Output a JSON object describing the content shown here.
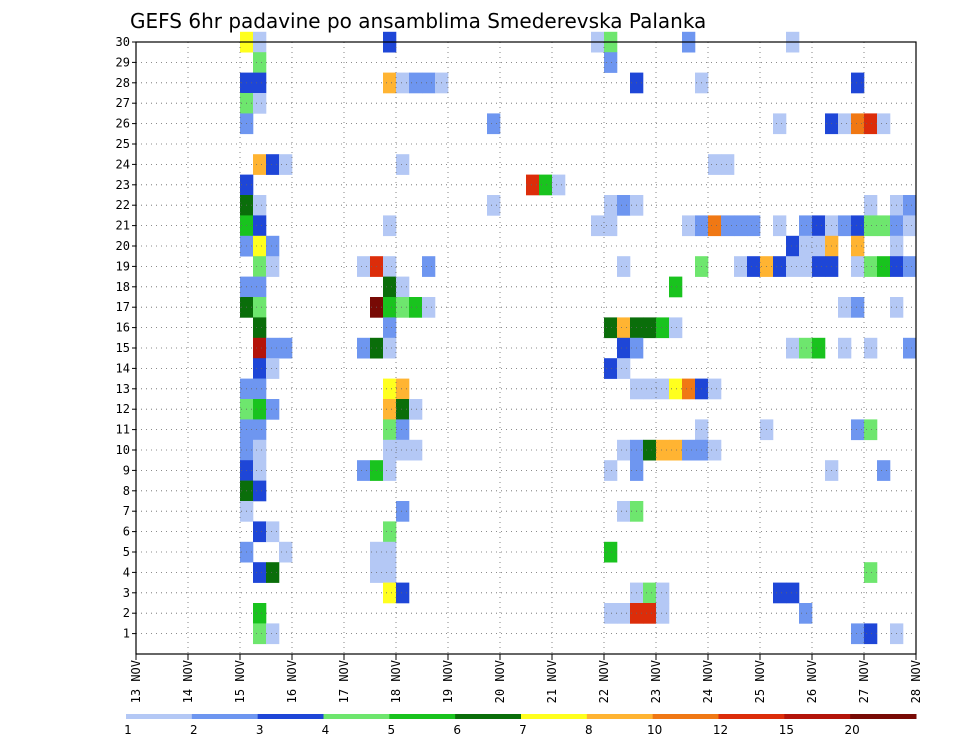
{
  "chart_data": {
    "type": "heatmap",
    "title": "GEFS 6hr padavine po ansamblima Smederevska Palanka",
    "xlabel": "",
    "ylabel": "",
    "x_tick_labels": [
      "13 NOV",
      "14 NOV",
      "15 NOV",
      "16 NOV",
      "17 NOV",
      "18 NOV",
      "19 NOV",
      "20 NOV",
      "21 NOV",
      "22 NOV",
      "23 NOV",
      "24 NOV",
      "25 NOV",
      "26 NOV",
      "27 NOV",
      "28 NOV"
    ],
    "x_unit": "days from 13 NOV 00z",
    "x_range": [
      0,
      15
    ],
    "time_step_days": 0.25,
    "y_tick_labels": [
      "1",
      "2",
      "3",
      "4",
      "5",
      "6",
      "7",
      "8",
      "9",
      "10",
      "11",
      "12",
      "13",
      "14",
      "15",
      "16",
      "17",
      "18",
      "19",
      "20",
      "21",
      "22",
      "23",
      "24",
      "25",
      "26",
      "27",
      "28",
      "29",
      "30"
    ],
    "y_range": [
      0,
      30
    ],
    "grid": true,
    "colorbar": {
      "placement": "bottom",
      "bounds": [
        1,
        2,
        3,
        4,
        5,
        6,
        7,
        8,
        10,
        12,
        15,
        20
      ],
      "labels": [
        "1",
        "2",
        "3",
        "4",
        "5",
        "6",
        "7",
        "8",
        "10",
        "12",
        "15",
        "20"
      ],
      "colors": [
        "#b4c8f5",
        "#6e96f0",
        "#1e46d7",
        "#6ee66e",
        "#19c31e",
        "#0a6e0a",
        "#ffff1e",
        "#ffb432",
        "#f07814",
        "#dc2d0a",
        "#b4140a",
        "#780a05"
      ]
    },
    "cells": [
      [
        2.0,
        30,
        6
      ],
      [
        2.25,
        30,
        0
      ],
      [
        4.75,
        30,
        2
      ],
      [
        8.75,
        30,
        0
      ],
      [
        9.0,
        30,
        3
      ],
      [
        10.5,
        30,
        1
      ],
      [
        12.5,
        30,
        0
      ],
      [
        2.25,
        29,
        3
      ],
      [
        9.0,
        29,
        1
      ],
      [
        2.0,
        28,
        2
      ],
      [
        2.25,
        28,
        2
      ],
      [
        4.75,
        28,
        7
      ],
      [
        5.0,
        28,
        0
      ],
      [
        5.25,
        28,
        1
      ],
      [
        5.5,
        28,
        1
      ],
      [
        5.75,
        28,
        0
      ],
      [
        9.5,
        28,
        2
      ],
      [
        10.75,
        28,
        0
      ],
      [
        13.75,
        28,
        2
      ],
      [
        2.0,
        27,
        3
      ],
      [
        2.25,
        27,
        0
      ],
      [
        2.0,
        26,
        1
      ],
      [
        6.75,
        26,
        1
      ],
      [
        12.25,
        26,
        0
      ],
      [
        13.25,
        26,
        2
      ],
      [
        13.5,
        26,
        0
      ],
      [
        13.75,
        26,
        8
      ],
      [
        14.0,
        26,
        9
      ],
      [
        14.25,
        26,
        0
      ],
      [
        2.25,
        24,
        7
      ],
      [
        2.5,
        24,
        2
      ],
      [
        2.75,
        24,
        0
      ],
      [
        5.0,
        24,
        0
      ],
      [
        11.0,
        24,
        0
      ],
      [
        11.25,
        24,
        0
      ],
      [
        2.0,
        23,
        2
      ],
      [
        7.5,
        23,
        9
      ],
      [
        7.75,
        23,
        4
      ],
      [
        8.0,
        23,
        0
      ],
      [
        2.0,
        22,
        5
      ],
      [
        2.25,
        22,
        0
      ],
      [
        6.75,
        22,
        0
      ],
      [
        9.0,
        22,
        0
      ],
      [
        9.25,
        22,
        1
      ],
      [
        9.5,
        22,
        0
      ],
      [
        14.0,
        22,
        0
      ],
      [
        14.5,
        22,
        0
      ],
      [
        14.75,
        22,
        1
      ],
      [
        2.0,
        21,
        4
      ],
      [
        2.25,
        21,
        2
      ],
      [
        4.75,
        21,
        0
      ],
      [
        8.75,
        21,
        0
      ],
      [
        9.0,
        21,
        0
      ],
      [
        10.5,
        21,
        0
      ],
      [
        10.75,
        21,
        1
      ],
      [
        11.0,
        21,
        8
      ],
      [
        11.25,
        21,
        1
      ],
      [
        11.5,
        21,
        1
      ],
      [
        11.75,
        21,
        1
      ],
      [
        12.25,
        21,
        0
      ],
      [
        12.75,
        21,
        1
      ],
      [
        13.0,
        21,
        2
      ],
      [
        13.25,
        21,
        0
      ],
      [
        13.5,
        21,
        1
      ],
      [
        13.75,
        21,
        2
      ],
      [
        14.0,
        21,
        3
      ],
      [
        14.25,
        21,
        3
      ],
      [
        14.5,
        21,
        1
      ],
      [
        14.75,
        21,
        0
      ],
      [
        2.0,
        20,
        1
      ],
      [
        2.25,
        20,
        6
      ],
      [
        2.5,
        20,
        1
      ],
      [
        12.5,
        20,
        2
      ],
      [
        12.75,
        20,
        0
      ],
      [
        13.0,
        20,
        0
      ],
      [
        13.25,
        20,
        7
      ],
      [
        13.75,
        20,
        7
      ],
      [
        14.5,
        20,
        0
      ],
      [
        2.25,
        19,
        3
      ],
      [
        2.5,
        19,
        0
      ],
      [
        4.25,
        19,
        0
      ],
      [
        4.5,
        19,
        9
      ],
      [
        4.75,
        19,
        0
      ],
      [
        5.5,
        19,
        1
      ],
      [
        9.25,
        19,
        0
      ],
      [
        10.75,
        19,
        3
      ],
      [
        11.5,
        19,
        0
      ],
      [
        11.75,
        19,
        2
      ],
      [
        12.0,
        19,
        7
      ],
      [
        12.25,
        19,
        2
      ],
      [
        12.5,
        19,
        0
      ],
      [
        12.75,
        19,
        0
      ],
      [
        13.0,
        19,
        2
      ],
      [
        13.25,
        19,
        2
      ],
      [
        13.75,
        19,
        0
      ],
      [
        14.0,
        19,
        3
      ],
      [
        14.25,
        19,
        4
      ],
      [
        14.5,
        19,
        2
      ],
      [
        14.75,
        19,
        1
      ],
      [
        2.0,
        18,
        1
      ],
      [
        2.25,
        18,
        1
      ],
      [
        4.75,
        18,
        5
      ],
      [
        5.0,
        18,
        0
      ],
      [
        10.25,
        18,
        4
      ],
      [
        2.0,
        17,
        5
      ],
      [
        2.25,
        17,
        3
      ],
      [
        4.5,
        17,
        11
      ],
      [
        4.75,
        17,
        4
      ],
      [
        5.0,
        17,
        3
      ],
      [
        5.25,
        17,
        4
      ],
      [
        5.5,
        17,
        0
      ],
      [
        13.5,
        17,
        0
      ],
      [
        13.75,
        17,
        1
      ],
      [
        14.5,
        17,
        0
      ],
      [
        2.25,
        16,
        5
      ],
      [
        4.75,
        16,
        1
      ],
      [
        9.0,
        16,
        5
      ],
      [
        9.25,
        16,
        7
      ],
      [
        9.5,
        16,
        5
      ],
      [
        9.75,
        16,
        5
      ],
      [
        10.0,
        16,
        4
      ],
      [
        10.25,
        16,
        0
      ],
      [
        2.25,
        15,
        10
      ],
      [
        2.5,
        15,
        1
      ],
      [
        2.75,
        15,
        1
      ],
      [
        4.25,
        15,
        1
      ],
      [
        4.5,
        15,
        5
      ],
      [
        4.75,
        15,
        0
      ],
      [
        9.25,
        15,
        2
      ],
      [
        9.5,
        15,
        1
      ],
      [
        12.5,
        15,
        0
      ],
      [
        12.75,
        15,
        3
      ],
      [
        13.0,
        15,
        4
      ],
      [
        13.5,
        15,
        0
      ],
      [
        14.0,
        15,
        0
      ],
      [
        14.75,
        15,
        1
      ],
      [
        2.25,
        14,
        2
      ],
      [
        2.5,
        14,
        0
      ],
      [
        9.0,
        14,
        2
      ],
      [
        9.25,
        14,
        0
      ],
      [
        2.0,
        13,
        1
      ],
      [
        2.25,
        13,
        1
      ],
      [
        4.75,
        13,
        6
      ],
      [
        5.0,
        13,
        7
      ],
      [
        9.5,
        13,
        0
      ],
      [
        9.75,
        13,
        0
      ],
      [
        10.0,
        13,
        0
      ],
      [
        10.25,
        13,
        6
      ],
      [
        10.5,
        13,
        8
      ],
      [
        10.75,
        13,
        2
      ],
      [
        11.0,
        13,
        0
      ],
      [
        2.0,
        12,
        3
      ],
      [
        2.25,
        12,
        4
      ],
      [
        2.5,
        12,
        1
      ],
      [
        4.75,
        12,
        7
      ],
      [
        5.0,
        12,
        5
      ],
      [
        5.25,
        12,
        0
      ],
      [
        2.0,
        11,
        1
      ],
      [
        2.25,
        11,
        1
      ],
      [
        4.75,
        11,
        3
      ],
      [
        5.0,
        11,
        1
      ],
      [
        10.75,
        11,
        0
      ],
      [
        12.0,
        11,
        0
      ],
      [
        13.75,
        11,
        1
      ],
      [
        14.0,
        11,
        3
      ],
      [
        2.0,
        10,
        1
      ],
      [
        2.25,
        10,
        0
      ],
      [
        4.75,
        10,
        0
      ],
      [
        5.0,
        10,
        0
      ],
      [
        5.25,
        10,
        0
      ],
      [
        9.25,
        10,
        0
      ],
      [
        9.5,
        10,
        1
      ],
      [
        9.75,
        10,
        5
      ],
      [
        10.0,
        10,
        7
      ],
      [
        10.25,
        10,
        7
      ],
      [
        10.5,
        10,
        1
      ],
      [
        10.75,
        10,
        1
      ],
      [
        11.0,
        10,
        0
      ],
      [
        2.0,
        9,
        2
      ],
      [
        2.25,
        9,
        0
      ],
      [
        4.25,
        9,
        1
      ],
      [
        4.5,
        9,
        4
      ],
      [
        4.75,
        9,
        0
      ],
      [
        9.0,
        9,
        0
      ],
      [
        9.5,
        9,
        1
      ],
      [
        13.25,
        9,
        0
      ],
      [
        14.25,
        9,
        1
      ],
      [
        2.0,
        8,
        5
      ],
      [
        2.25,
        8,
        2
      ],
      [
        2.0,
        7,
        0
      ],
      [
        5.0,
        7,
        1
      ],
      [
        9.25,
        7,
        0
      ],
      [
        9.5,
        7,
        3
      ],
      [
        2.25,
        6,
        2
      ],
      [
        2.5,
        6,
        0
      ],
      [
        4.75,
        6,
        3
      ],
      [
        2.0,
        5,
        1
      ],
      [
        2.75,
        5,
        0
      ],
      [
        4.5,
        5,
        0
      ],
      [
        4.75,
        5,
        0
      ],
      [
        9.0,
        5,
        4
      ],
      [
        2.25,
        4,
        2
      ],
      [
        2.5,
        4,
        5
      ],
      [
        4.5,
        4,
        0
      ],
      [
        4.75,
        4,
        0
      ],
      [
        14.0,
        4,
        3
      ],
      [
        4.75,
        3,
        6
      ],
      [
        5.0,
        3,
        2
      ],
      [
        9.5,
        3,
        0
      ],
      [
        9.75,
        3,
        3
      ],
      [
        10.0,
        3,
        0
      ],
      [
        12.25,
        3,
        2
      ],
      [
        12.5,
        3,
        2
      ],
      [
        2.25,
        2,
        4
      ],
      [
        9.0,
        2,
        0
      ],
      [
        9.25,
        2,
        0
      ],
      [
        9.5,
        2,
        9
      ],
      [
        9.75,
        2,
        9
      ],
      [
        10.0,
        2,
        0
      ],
      [
        12.75,
        2,
        1
      ],
      [
        2.25,
        1,
        3
      ],
      [
        2.5,
        1,
        0
      ],
      [
        13.75,
        1,
        1
      ],
      [
        14.0,
        1,
        2
      ],
      [
        14.5,
        1,
        0
      ]
    ]
  }
}
